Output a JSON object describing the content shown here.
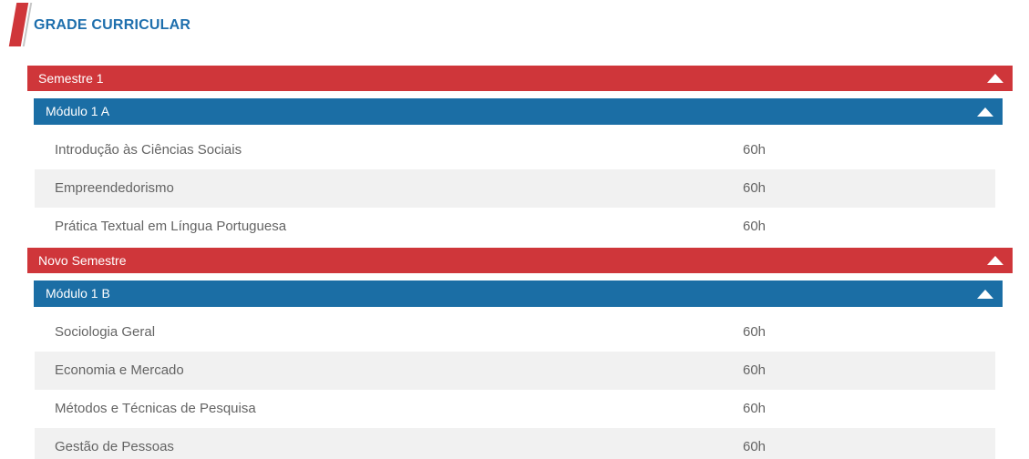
{
  "header": {
    "title": "GRADE CURRICULAR"
  },
  "colors": {
    "red": "#cf363a",
    "blue": "#1b6ea5",
    "title_blue": "#1e6fad",
    "row_alt_bg": "#f1f1f1",
    "row_text": "#646464",
    "ribbon_shadow": "#c6c6c6"
  },
  "semesters": [
    {
      "label": "Semestre 1",
      "collapse_icon": "up-triangle",
      "modules": [
        {
          "label": "Módulo 1 A",
          "collapse_icon": "up-triangle",
          "courses": [
            {
              "name": "Introdução às Ciências Sociais",
              "hours": "60h"
            },
            {
              "name": "Empreendedorismo",
              "hours": "60h"
            },
            {
              "name": "Prática Textual em Língua Portuguesa",
              "hours": "60h"
            }
          ]
        }
      ]
    },
    {
      "label": "Novo Semestre",
      "collapse_icon": "up-triangle",
      "modules": [
        {
          "label": "Módulo 1 B",
          "collapse_icon": "up-triangle",
          "courses": [
            {
              "name": "Sociologia Geral",
              "hours": "60h"
            },
            {
              "name": "Economia e Mercado",
              "hours": "60h"
            },
            {
              "name": "Métodos e Técnicas de Pesquisa",
              "hours": "60h"
            },
            {
              "name": "Gestão de Pessoas",
              "hours": "60h"
            }
          ]
        }
      ]
    }
  ]
}
